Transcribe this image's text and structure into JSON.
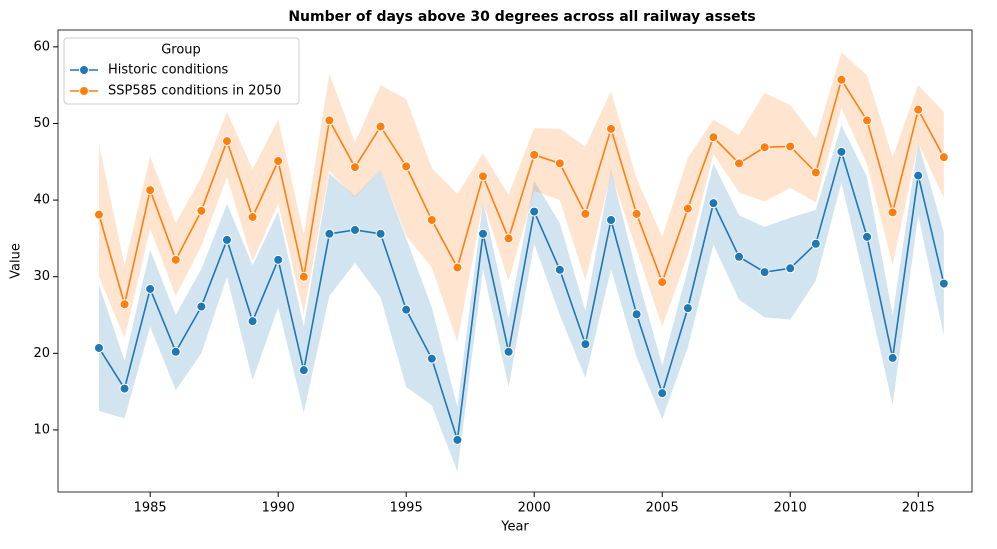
{
  "chart_data": {
    "type": "line",
    "title": "Number of days above 30 degrees across all railway assets",
    "xlabel": "Year",
    "ylabel": "Value",
    "x": [
      1983,
      1984,
      1985,
      1986,
      1987,
      1988,
      1989,
      1990,
      1991,
      1992,
      1993,
      1994,
      1995,
      1996,
      1997,
      1998,
      1999,
      2000,
      2001,
      2002,
      2003,
      2004,
      2005,
      2006,
      2007,
      2008,
      2009,
      2010,
      2011,
      2012,
      2013,
      2014,
      2015,
      2016
    ],
    "series": [
      {
        "name": "Historic conditions",
        "color": "#1f77b4",
        "values": [
          20.7,
          15.4,
          28.4,
          20.2,
          26.1,
          34.8,
          24.2,
          32.2,
          17.8,
          35.6,
          36.1,
          35.6,
          25.7,
          19.3,
          8.7,
          35.6,
          20.2,
          38.5,
          30.9,
          21.2,
          37.4,
          25.1,
          14.8,
          25.9,
          39.6,
          32.6,
          30.6,
          31.1,
          34.3,
          46.3,
          35.2,
          19.4,
          43.2,
          29.1
        ],
        "lower": [
          12.5,
          11.5,
          23.5,
          15.2,
          20,
          30,
          16.5,
          26,
          12.3,
          27.5,
          31.8,
          27.3,
          15.6,
          13.2,
          4.6,
          31,
          15.6,
          34.3,
          25,
          16.8,
          31,
          19.5,
          11.4,
          20.8,
          34.2,
          27,
          24.7,
          24.4,
          29.5,
          42.3,
          28,
          13.3,
          38,
          22.3
        ],
        "upper": [
          29,
          19,
          33.5,
          25,
          31,
          39.5,
          31.5,
          38.5,
          23.5,
          43.5,
          40.5,
          44,
          35,
          26,
          13,
          39.8,
          24.5,
          42.5,
          37,
          25.5,
          44,
          30.5,
          18.4,
          31,
          44.8,
          38,
          36.5,
          37.7,
          38.7,
          49.8,
          43,
          25,
          47.5,
          35.8
        ]
      },
      {
        "name": "SSP585 conditions in 2050",
        "color": "#ff7f0e",
        "values": [
          38.1,
          26.4,
          41.3,
          32.2,
          38.6,
          47.7,
          37.8,
          45.1,
          30.0,
          50.4,
          44.3,
          49.6,
          44.4,
          37.4,
          31.2,
          43.1,
          35.0,
          45.9,
          44.8,
          38.2,
          49.3,
          38.2,
          29.3,
          38.9,
          48.2,
          44.8,
          46.9,
          47.0,
          43.6,
          55.7,
          50.4,
          38.4,
          51.8,
          45.6
        ],
        "lower": [
          30,
          22,
          36.3,
          27.5,
          34,
          43,
          32,
          39.5,
          25.2,
          43.8,
          40.3,
          44,
          35.3,
          31.2,
          21.5,
          39.7,
          29.5,
          41.2,
          40,
          29.5,
          43.5,
          33.5,
          23.5,
          32.8,
          46,
          41,
          39.8,
          41.6,
          39.7,
          52,
          44.7,
          31.5,
          47.4,
          40.3
        ],
        "upper": [
          47.3,
          31.5,
          45.7,
          37,
          43,
          51.5,
          44,
          50.5,
          35.5,
          56.5,
          47.5,
          55,
          53.2,
          44.2,
          40.8,
          46.1,
          40.7,
          49.4,
          49.3,
          47,
          54.2,
          42.8,
          35.2,
          45.5,
          50.5,
          48.5,
          54,
          52.4,
          48,
          59.3,
          56.3,
          45.6,
          55,
          51.5
        ]
      }
    ],
    "xlim": [
      1981.4,
      2017.1
    ],
    "xticks": [
      1985,
      1990,
      1995,
      2000,
      2005,
      2010,
      2015
    ],
    "ylim": [
      1.9,
      62.2
    ],
    "yticks": [
      10,
      20,
      30,
      40,
      50,
      60
    ],
    "legend_title": "Group",
    "legend": "upper left",
    "grid": false
  }
}
